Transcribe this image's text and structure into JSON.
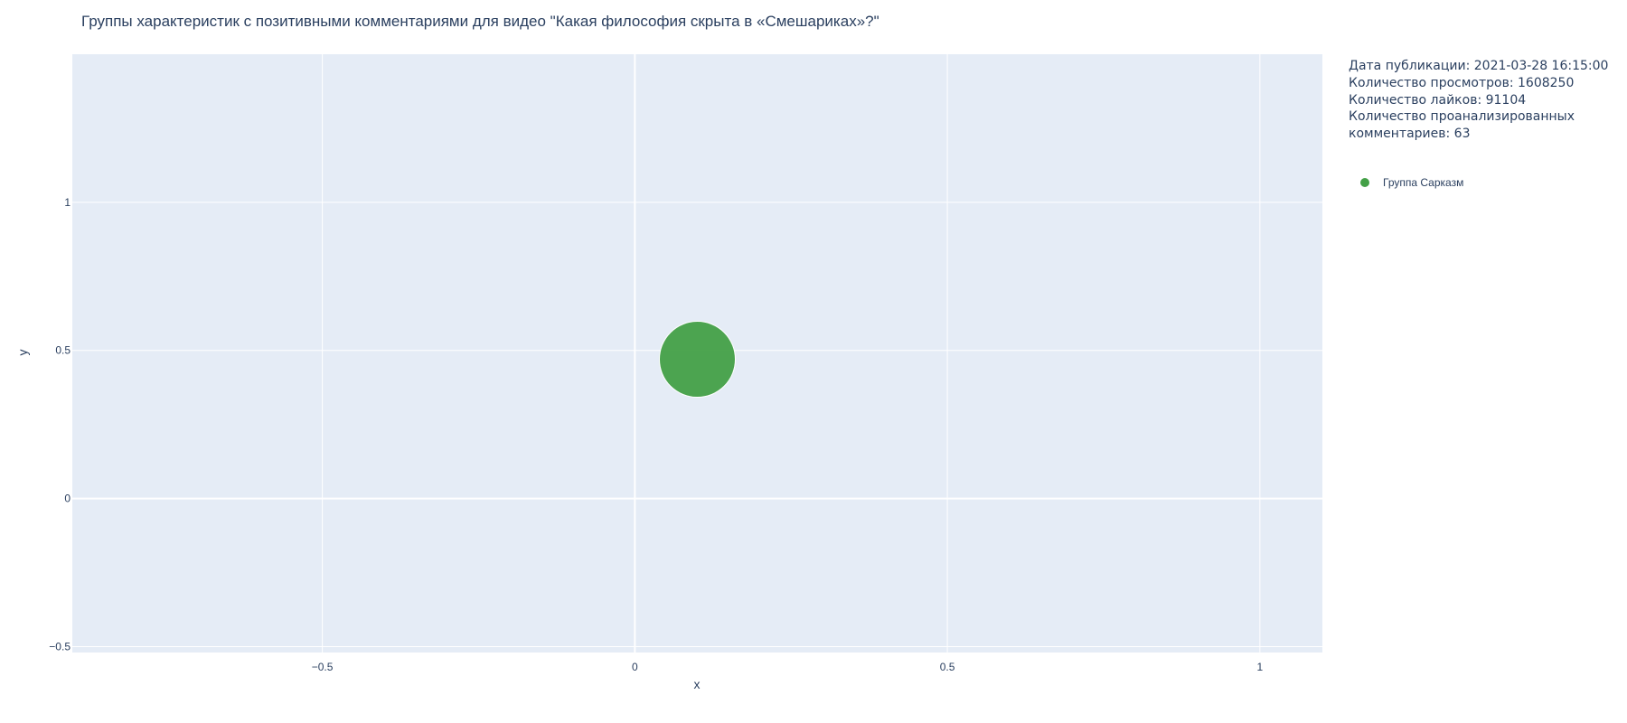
{
  "chart_data": {
    "type": "scatter",
    "title": "Группы характеристик с позитивными комментариями для видео \"Какая философия скрыта в «Смешариках»?\"",
    "xlabel": "x",
    "ylabel": "y",
    "xlim": [
      -0.9,
      1.1
    ],
    "ylim": [
      -0.52,
      1.5
    ],
    "x_ticks": [
      -0.5,
      0,
      0.5,
      1
    ],
    "x_tick_labels": [
      "−0.5",
      "0",
      "0.5",
      "1"
    ],
    "y_ticks": [
      -0.5,
      0,
      0.5,
      1
    ],
    "y_tick_labels": [
      "−0.5",
      "0",
      "0.5",
      "1"
    ],
    "grid": true,
    "legend_position": "top-right",
    "plot_bgcolor": "#e5ecf6",
    "series": [
      {
        "name": "Группа Сарказм",
        "color": "#43a047",
        "x": [
          0.1
        ],
        "y": [
          0.47
        ],
        "marker_size_relative": [
          1
        ]
      }
    ]
  },
  "info": {
    "lines": [
      "Дата публикации: 2021-03-28 16:15:00",
      "Количество просмотров: 1608250",
      "Количество лайков: 91104",
      "Количество проанализированных",
      "комментариев: 63"
    ]
  }
}
